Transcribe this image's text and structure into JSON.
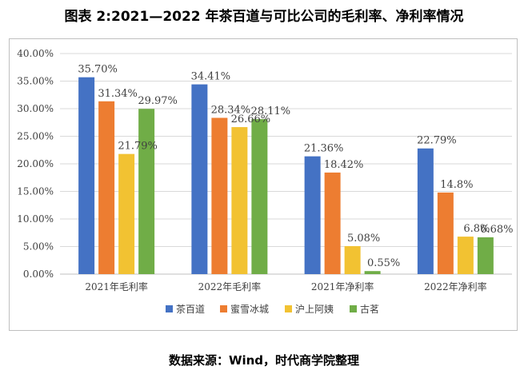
{
  "title": "图表 2:2021—2022 年茶百道与可比公司的毛利率、净利率情况",
  "source_note": "数据来源：Wind，时代商学院整理",
  "chart_data": {
    "type": "bar",
    "title": "",
    "xlabel": "",
    "ylabel": "",
    "ylim": [
      0,
      40
    ],
    "y_ticks": [
      "0.00%",
      "5.00%",
      "10.00%",
      "15.00%",
      "20.00%",
      "25.00%",
      "30.00%",
      "35.00%",
      "40.00%"
    ],
    "grid": true,
    "legend_position": "bottom",
    "categories": [
      "2021年毛利率",
      "2022年毛利率",
      "2021年净利率",
      "2022年净利率"
    ],
    "series": [
      {
        "name": "茶百道",
        "color": "#4472c4",
        "values": [
          35.7,
          34.41,
          21.36,
          22.79
        ],
        "labels": [
          "35.70%",
          "34.41%",
          "21.36%",
          "22.79%"
        ]
      },
      {
        "name": "蜜雪冰城",
        "color": "#ed7d31",
        "values": [
          31.34,
          28.34,
          18.42,
          14.8
        ],
        "labels": [
          "31.34%",
          "28.34%",
          "18.42%",
          "14.8%"
        ]
      },
      {
        "name": "沪上阿姨",
        "color": "#f2c232",
        "values": [
          21.79,
          26.66,
          5.08,
          6.8
        ],
        "labels": [
          "21.79%",
          "26.66%",
          "5.08%",
          "6.8%"
        ]
      },
      {
        "name": "古茗",
        "color": "#70ad47",
        "values": [
          29.97,
          28.11,
          0.55,
          6.68
        ],
        "labels": [
          "29.97%",
          "28.11%",
          "0.55%",
          "6.68%"
        ]
      }
    ]
  }
}
